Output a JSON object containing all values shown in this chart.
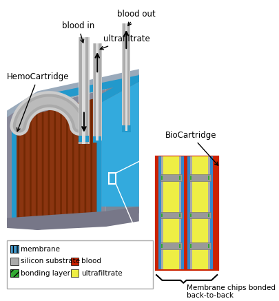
{
  "fig_bg": "#ffffff",
  "labels": {
    "hemo": "HemoCartridge",
    "blood_in": "blood in",
    "ultrafiltrate": "ultrafiltrate",
    "blood_out": "blood out",
    "bio": "BioCartridge",
    "membrane_chips": "Membrane chips bonded\nback-to-back"
  },
  "colors": {
    "body_front": "#7a6050",
    "body_side_right": "#8a9aaa",
    "body_top": "#9aaabb",
    "body_shadow": "#555566",
    "blue_accent": "#2299cc",
    "blue_bright": "#33aadd",
    "blood_fill": "#993311",
    "blood_stripe_dark": "#7a2800",
    "membrane_blue": "#3388cc",
    "silicon_grey": "#aaaaaa",
    "bonding_green": "#33aa33",
    "blood_red": "#cc2200",
    "yellow_uf": "#eeee44",
    "tube_outer": "#cccccc",
    "tube_inner": "#aaaaaa",
    "tube_dark": "#888888",
    "grey_body": "#888899"
  },
  "legend": [
    {
      "label": "membrane",
      "color": "#4499cc",
      "hatch": "|||"
    },
    {
      "label": "silicon substrate",
      "color": "#aaaaaa",
      "hatch": ""
    },
    {
      "label": "bonding layer",
      "color": "#33aa33",
      "hatch": "///"
    },
    {
      "label": "blood",
      "color": "#cc2200",
      "hatch": ""
    },
    {
      "label": "ultrafiltrate",
      "color": "#eeee44",
      "hatch": ""
    }
  ]
}
